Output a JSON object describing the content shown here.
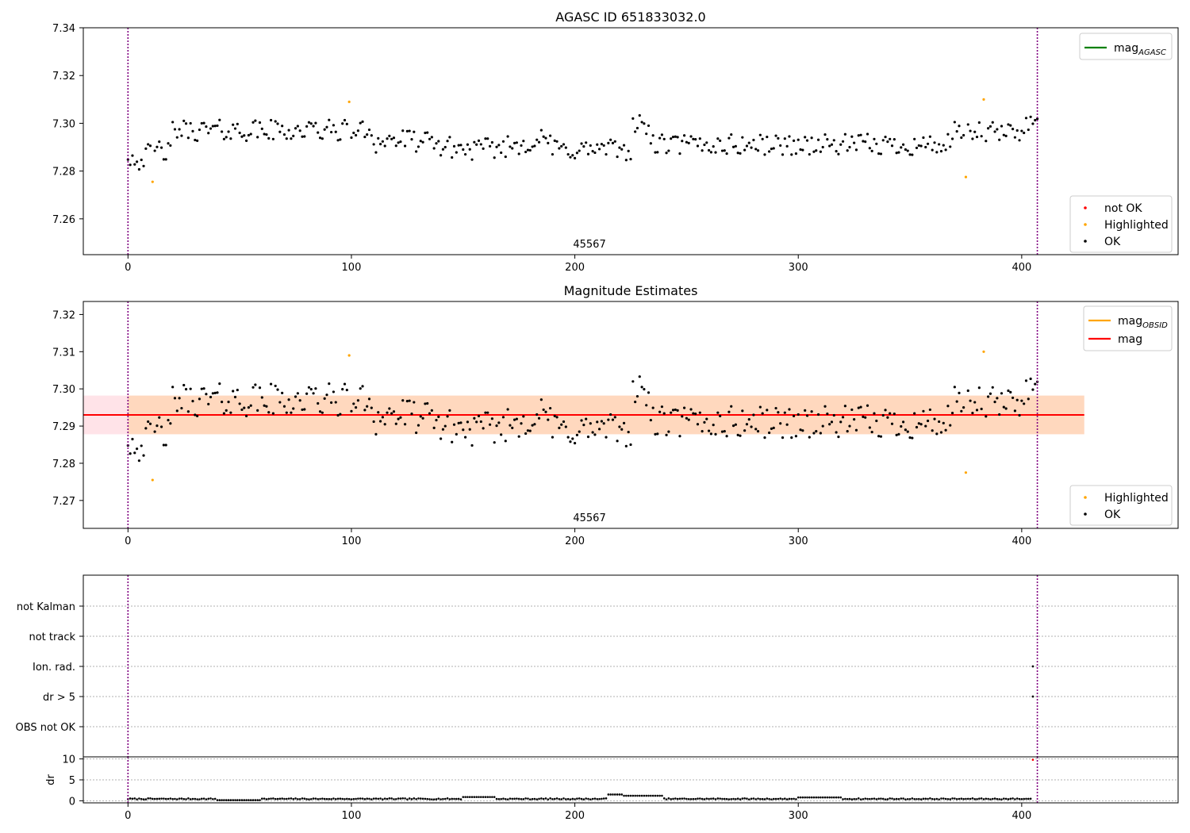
{
  "chart_data": [
    {
      "type": "scatter",
      "title": "AGASC ID 651833032.0",
      "xlim": [
        -20,
        470
      ],
      "ylim": [
        7.245,
        7.34
      ],
      "x_ticks": [
        0,
        100,
        200,
        300,
        400
      ],
      "y_ticks": [
        7.26,
        7.28,
        7.3,
        7.32,
        7.34
      ],
      "x_tick_labels": [
        "0",
        "100",
        "200",
        "300",
        "400"
      ],
      "y_tick_labels": [
        "7.26",
        "7.28",
        "7.30",
        "7.32",
        "7.34"
      ],
      "obsid_annotation": "45567",
      "obsid_annotation_x": 203,
      "vlines_x": [
        0,
        407
      ],
      "line_legend": [
        {
          "name": "mag",
          "sub": "AGASC",
          "color": "#008000"
        }
      ],
      "point_legend": [
        {
          "name": "not OK",
          "color": "#ff0000"
        },
        {
          "name": "Highlighted",
          "color": "#ffa500"
        },
        {
          "name": "OK",
          "color": "#000000"
        }
      ],
      "series": [
        {
          "name": "OK",
          "color": "#000000",
          "x": [],
          "y": []
        },
        {
          "name": "Highlighted",
          "color": "#ffa500",
          "x": [
            11,
            99,
            375,
            383
          ],
          "y": [
            7.2755,
            7.309,
            7.2775,
            7.31
          ]
        }
      ],
      "grid": false
    },
    {
      "type": "scatter",
      "title": "Magnitude Estimates",
      "xlim": [
        -20,
        470
      ],
      "ylim": [
        7.2625,
        7.3235
      ],
      "x_ticks": [
        0,
        100,
        200,
        300,
        400
      ],
      "y_ticks": [
        7.27,
        7.28,
        7.29,
        7.3,
        7.31,
        7.32
      ],
      "x_tick_labels": [
        "0",
        "100",
        "200",
        "300",
        "400"
      ],
      "y_tick_labels": [
        "7.27",
        "7.28",
        "7.29",
        "7.30",
        "7.31",
        "7.32"
      ],
      "obsid_annotation": "45567",
      "obsid_annotation_x": 203,
      "vlines_x": [
        0,
        407
      ],
      "mag_value": 7.293,
      "band_range_x": [
        -20,
        428
      ],
      "band_outer": [
        7.2878,
        7.2982
      ],
      "band_inner": [
        7.2878,
        7.2982
      ],
      "line_legend": [
        {
          "name": "mag",
          "sub": "OBSID",
          "color": "#ffa500"
        },
        {
          "name": "mag",
          "sub": "",
          "color": "#ff0000"
        }
      ],
      "point_legend": [
        {
          "name": "Highlighted",
          "color": "#ffa500"
        },
        {
          "name": "OK",
          "color": "#000000"
        }
      ],
      "series": [
        {
          "name": "OK",
          "color": "#000000",
          "x": [],
          "y": []
        },
        {
          "name": "Highlighted",
          "color": "#ffa500",
          "x": [
            11,
            99,
            375,
            383
          ],
          "y": [
            7.2755,
            7.309,
            7.2775,
            7.31
          ]
        }
      ],
      "grid": false
    },
    {
      "type": "scatter",
      "title": "",
      "xlim": [
        -20,
        470
      ],
      "categories": [
        "not Kalman",
        "not track",
        "Ion. rad.",
        "dr > 5",
        "OBS not OK"
      ],
      "vlines_x": [
        0,
        407
      ],
      "flag_points": [
        {
          "category": "Ion. rad.",
          "x": 405
        },
        {
          "category": "dr > 5",
          "x": 405
        }
      ],
      "grid": true
    },
    {
      "type": "scatter",
      "title": "",
      "ylabel": "dr",
      "xlim": [
        -20,
        470
      ],
      "ylim": [
        -0.5,
        10.5
      ],
      "x_ticks": [
        0,
        100,
        200,
        300,
        400
      ],
      "y_ticks": [
        0,
        5,
        10
      ],
      "x_tick_labels": [
        "0",
        "100",
        "200",
        "300",
        "400"
      ],
      "y_tick_labels": [
        "0",
        "5",
        "10"
      ],
      "vlines_x": [
        0,
        407
      ],
      "series": [
        {
          "name": "OK",
          "color": "#000000",
          "x": [],
          "y": []
        },
        {
          "name": "not OK",
          "color": "#ff0000",
          "x": [
            405
          ],
          "y": [
            9.8
          ]
        }
      ],
      "grid": true
    }
  ]
}
